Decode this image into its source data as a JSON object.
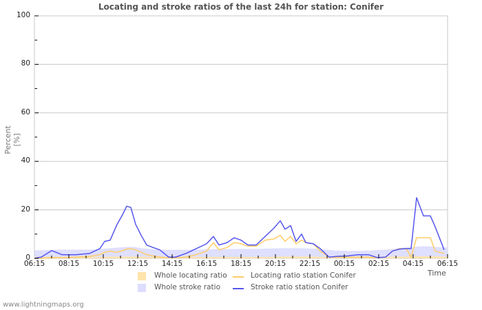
{
  "chart_data": {
    "type": "line",
    "title": "Locating and stroke ratios of the last 24h for station: Conifer",
    "xlabel": "Time",
    "ylabel": "Percent   [%]",
    "ylim": [
      0,
      100
    ],
    "yticks": [
      0,
      20,
      40,
      60,
      80,
      100
    ],
    "xticks": [
      "06:15",
      "08:15",
      "10:15",
      "12:15",
      "14:15",
      "16:15",
      "18:15",
      "20:15",
      "22:15",
      "00:15",
      "02:15",
      "04:15",
      "06:15"
    ],
    "grid": true,
    "legend_position": "bottom",
    "x_hours": [
      0,
      0.4,
      1.0,
      1.6,
      2.4,
      3.2,
      3.8,
      4.08,
      4.4,
      4.8,
      5.12,
      5.36,
      5.6,
      5.88,
      6.2,
      6.52,
      6.88,
      7.28,
      7.8,
      8.2,
      8.8,
      9.4,
      10.0,
      10.4,
      10.72,
      11.2,
      11.6,
      12.0,
      12.4,
      12.88,
      13.4,
      13.92,
      14.28,
      14.56,
      14.88,
      15.2,
      15.52,
      15.76,
      16.2,
      16.6,
      17.12,
      17.6,
      18.2,
      18.8,
      19.4,
      19.92,
      20.4,
      20.8,
      21.2,
      21.6,
      21.88,
      22.2,
      22.6,
      23.0,
      23.28,
      23.8
    ],
    "series": [
      {
        "name": "Stroke ratio station Conifer",
        "kind": "line",
        "color": "#5555ee",
        "values": [
          0,
          0.5,
          3.2,
          1.5,
          1.5,
          2,
          4,
          7,
          7.5,
          14,
          18,
          21.5,
          21,
          14,
          9.5,
          5.5,
          4.5,
          3.5,
          0.5,
          0.5,
          2,
          4,
          6,
          9,
          5.5,
          6.5,
          8.5,
          7.5,
          5.5,
          5.5,
          9,
          12.5,
          15.5,
          12,
          13.5,
          7,
          10,
          6.5,
          6,
          4,
          0.5,
          0.8,
          1,
          1.5,
          1.5,
          0.3,
          0.5,
          3,
          3.8,
          4,
          4,
          25,
          17.5,
          17.5,
          13,
          3.5
        ]
      },
      {
        "name": "Locating ratio station Conifer",
        "kind": "line",
        "color": "#ffcc66",
        "values": [
          0,
          0,
          0.3,
          0.3,
          0.5,
          0.8,
          1.5,
          2.5,
          3,
          2.5,
          3.2,
          3.8,
          4,
          3.5,
          2.5,
          1.5,
          1,
          0.5,
          0.3,
          0.3,
          0.5,
          1.5,
          3,
          6.5,
          3.5,
          4.5,
          6.5,
          6,
          5,
          5,
          7.5,
          8,
          9.5,
          7,
          9,
          6,
          7.5,
          6.5,
          6,
          3,
          0.5,
          0.5,
          0.5,
          0.5,
          0.5,
          0.3,
          0.5,
          3,
          4,
          4,
          0.5,
          8.5,
          8.5,
          8.5,
          3,
          2
        ]
      },
      {
        "name": "Whole stroke ratio",
        "kind": "area",
        "color": "#ddddff",
        "values": [
          3.3,
          3.3,
          3.5,
          3.6,
          3.6,
          3.6,
          3.8,
          4.0,
          4.2,
          4.4,
          4.6,
          4.7,
          4.7,
          4.6,
          4.2,
          4.0,
          3.8,
          3.6,
          3.5,
          3.5,
          3.5,
          3.6,
          3.7,
          3.8,
          3.8,
          3.8,
          3.9,
          3.9,
          3.9,
          3.9,
          4.0,
          4.1,
          4.2,
          4.2,
          4.2,
          4.2,
          4.2,
          4.1,
          4.0,
          3.8,
          3.4,
          3.2,
          3.1,
          3.1,
          3.2,
          3.4,
          3.6,
          3.9,
          4.3,
          4.5,
          4.6,
          4.8,
          5.0,
          4.9,
          4.7,
          4.5
        ]
      },
      {
        "name": "Whole locating ratio",
        "kind": "area",
        "color": "#ffe3aa",
        "values": [
          0.6,
          0.6,
          0.6,
          0.6,
          0.6,
          0.6,
          0.6,
          0.6,
          0.7,
          0.7,
          0.7,
          0.7,
          0.7,
          0.7,
          0.7,
          0.6,
          0.6,
          0.6,
          0.6,
          0.6,
          0.6,
          0.6,
          0.6,
          0.6,
          0.6,
          0.6,
          0.6,
          0.6,
          0.6,
          0.6,
          0.6,
          0.6,
          0.7,
          0.7,
          0.7,
          0.7,
          0.7,
          0.7,
          0.7,
          0.6,
          0.6,
          0.6,
          0.6,
          0.6,
          0.6,
          0.6,
          0.6,
          0.7,
          0.7,
          0.7,
          0.7,
          0.8,
          0.8,
          0.8,
          0.8,
          0.7
        ]
      }
    ]
  },
  "legend": {
    "items": [
      {
        "label": "Whole locating ratio",
        "color": "#ffe3aa",
        "type": "box"
      },
      {
        "label": "Locating ratio station Conifer",
        "color": "#ffcc66",
        "type": "line"
      },
      {
        "label": "Whole stroke ratio",
        "color": "#ddddff",
        "type": "box"
      },
      {
        "label": "Stroke ratio station Conifer",
        "color": "#5555ee",
        "type": "line"
      }
    ]
  },
  "footer": {
    "text": "www.lightningmaps.org"
  }
}
